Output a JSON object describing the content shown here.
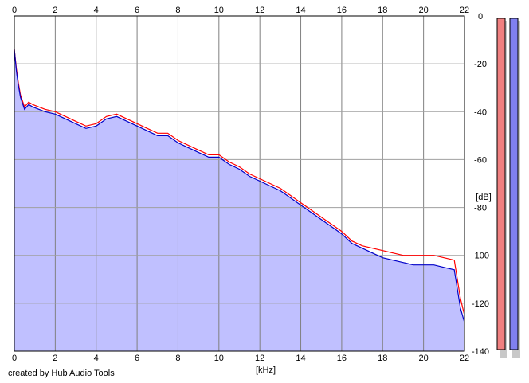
{
  "credit": "created by Hub Audio Tools",
  "chart_data": {
    "type": "area",
    "xlabel": "[kHz]",
    "ylabel": "[dB]",
    "xlim": [
      0,
      22
    ],
    "ylim": [
      -140,
      0
    ],
    "x_ticks": [
      0,
      2,
      4,
      6,
      8,
      10,
      12,
      14,
      16,
      18,
      20,
      22
    ],
    "y_ticks": [
      0,
      -20,
      -40,
      -60,
      -80,
      -100,
      -120,
      -140
    ],
    "grid": true,
    "colors": {
      "red": "#ff0000",
      "blue": "#0000c8",
      "fill": "#c0c0ff",
      "grid": "#a0a0a0"
    },
    "series": [
      {
        "color": "red",
        "x": [
          0,
          0.1,
          0.2,
          0.3,
          0.5,
          0.7,
          0.9,
          1.2,
          1.5,
          2,
          2.5,
          3,
          3.5,
          4,
          4.5,
          5,
          5.5,
          6,
          6.5,
          7,
          7.5,
          8,
          8.5,
          9,
          9.5,
          10,
          10.5,
          11,
          11.5,
          12,
          12.5,
          13,
          13.5,
          14,
          14.5,
          15,
          15.5,
          16,
          16.5,
          17,
          17.5,
          18,
          18.5,
          19,
          19.5,
          20,
          20.5,
          21,
          21.5,
          21.8,
          22
        ],
        "values": [
          -14,
          -22,
          -28,
          -33,
          -38,
          -36,
          -37,
          -38,
          -39,
          -40,
          -42,
          -44,
          -46,
          -45,
          -42,
          -41,
          -43,
          -45,
          -47,
          -49,
          -49,
          -52,
          -54,
          -56,
          -58,
          -58,
          -61,
          -63,
          -66,
          -68,
          -70,
          -72,
          -75,
          -78,
          -81,
          -84,
          -87,
          -90,
          -94,
          -96,
          -97,
          -98,
          -99,
          -100,
          -100,
          -100,
          -100,
          -101,
          -102,
          -118,
          -125
        ]
      },
      {
        "color": "blue",
        "x": [
          0,
          0.1,
          0.2,
          0.3,
          0.5,
          0.7,
          0.9,
          1.2,
          1.5,
          2,
          2.5,
          3,
          3.5,
          4,
          4.5,
          5,
          5.5,
          6,
          6.5,
          7,
          7.5,
          8,
          8.5,
          9,
          9.5,
          10,
          10.5,
          11,
          11.5,
          12,
          12.5,
          13,
          13.5,
          14,
          14.5,
          15,
          15.5,
          16,
          16.5,
          17,
          17.5,
          18,
          18.5,
          19,
          19.5,
          20,
          20.5,
          21,
          21.5,
          21.8,
          22
        ],
        "values": [
          -14,
          -23,
          -29,
          -34,
          -39,
          -37,
          -38,
          -39,
          -40,
          -41,
          -43,
          -45,
          -47,
          -46,
          -43,
          -42,
          -44,
          -46,
          -48,
          -50,
          -50,
          -53,
          -55,
          -57,
          -59,
          -59,
          -62,
          -64,
          -67,
          -69,
          -71,
          -73,
          -76,
          -79,
          -82,
          -85,
          -88,
          -91,
          -95,
          -97,
          -99,
          -101,
          -102,
          -103,
          -104,
          -104,
          -104,
          -105,
          -106,
          -122,
          -128
        ]
      }
    ]
  },
  "level_meters": [
    {
      "label": "",
      "color": "#f08080"
    },
    {
      "label": "",
      "color": "#8080f0"
    }
  ]
}
